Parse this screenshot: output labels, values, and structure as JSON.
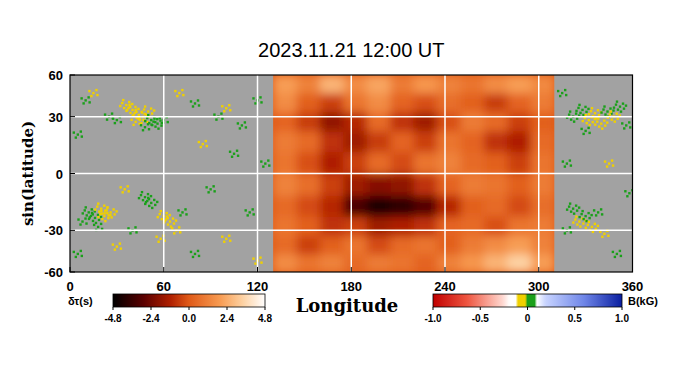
{
  "chart_data": {
    "type": "heatmap",
    "title": "2023.11.21 12:00 UT",
    "x_label": "Longitude",
    "y_label": "sin(latitude)",
    "xlim": [
      0,
      360
    ],
    "xticks": [
      0,
      60,
      120,
      180,
      240,
      300,
      360
    ],
    "ylim": [
      -60,
      60
    ],
    "yticks": [
      -60,
      -30,
      0,
      30,
      60
    ],
    "grid": true,
    "far_side": {
      "x": [
        130,
        145,
        160,
        175,
        190,
        205,
        220,
        235,
        250,
        265,
        280,
        295,
        310
      ],
      "y": [
        -60,
        -45,
        -33,
        -22,
        -11,
        0,
        11,
        22,
        33,
        45,
        60
      ],
      "values": [
        [
          1.5,
          0.8,
          1.2,
          0.5,
          1.0,
          0.8,
          0.3,
          1.2,
          1.8,
          2.6,
          3.4,
          2.0
        ],
        [
          0.5,
          -0.5,
          0.2,
          0.8,
          -0.3,
          0.5,
          0.8,
          0.2,
          1.0,
          1.5,
          2.0,
          1.2
        ],
        [
          0.8,
          0.2,
          -0.8,
          -0.5,
          -1.5,
          -1.2,
          -0.8,
          0.3,
          0.5,
          -0.2,
          0.8,
          1.0
        ],
        [
          0.5,
          -0.3,
          -1.0,
          -3.2,
          -4.2,
          -3.8,
          -3.0,
          -1.0,
          0.2,
          0.5,
          -0.3,
          0.6
        ],
        [
          1.2,
          0.6,
          -0.5,
          -1.5,
          -2.0,
          -1.8,
          -0.8,
          0.3,
          1.0,
          0.8,
          0.2,
          1.0
        ],
        [
          0.8,
          -0.2,
          -1.2,
          -0.5,
          0.5,
          -0.3,
          0.8,
          1.2,
          0.5,
          0.2,
          -0.5,
          0.8
        ],
        [
          1.0,
          0.5,
          -0.8,
          -1.5,
          -0.6,
          0.3,
          -0.5,
          0.8,
          0.3,
          -0.8,
          -1.2,
          0.5
        ],
        [
          0.3,
          -0.6,
          -1.8,
          -1.0,
          0.5,
          -0.8,
          -1.5,
          -0.2,
          1.0,
          0.5,
          -0.5,
          0.2
        ],
        [
          1.5,
          0.2,
          -0.5,
          0.8,
          1.5,
          0.3,
          -0.2,
          0.6,
          0.2,
          -0.6,
          0.3,
          1.0
        ],
        [
          2.0,
          1.2,
          2.6,
          1.5,
          2.2,
          1.0,
          1.8,
          1.2,
          0.8,
          1.5,
          2.0,
          1.4
        ]
      ]
    },
    "magnetogram": {
      "lon": [
        36,
        40,
        44,
        47,
        42,
        50,
        52,
        56,
        60,
        48,
        30,
        25,
        10,
        15,
        80,
        95,
        100,
        110,
        120,
        70,
        5,
        85,
        105,
        125,
        12,
        16,
        20,
        22,
        26,
        8,
        18,
        48,
        52,
        60,
        64,
        68,
        58,
        72,
        40,
        30,
        80,
        100,
        115,
        90,
        5,
        120,
        35,
        322,
        328,
        332,
        336,
        340,
        344,
        348,
        352,
        330,
        356,
        322,
        326,
        330,
        334,
        338,
        318,
        342,
        315,
        350,
        345,
        358,
        318
      ],
      "lat": [
        37,
        34,
        31,
        28,
        27,
        33,
        28,
        26,
        28,
        24,
        28,
        30,
        40,
        45,
        38,
        30,
        35,
        25,
        40,
        45,
        20,
        15,
        10,
        5,
        -20,
        -23,
        -18,
        -22,
        -20,
        -25,
        -28,
        -12,
        -15,
        -22,
        -25,
        -30,
        -35,
        -20,
        -30,
        -40,
        -45,
        -35,
        -20,
        -8,
        -45,
        -50,
        -8,
        30,
        34,
        28,
        32,
        26,
        33,
        30,
        36,
        22,
        25,
        -18,
        -25,
        -22,
        -28,
        -20,
        -30,
        -32,
        45,
        -45,
        5,
        -10,
        5
      ],
      "b": [
        -0.07,
        -0.09,
        -0.08,
        -0.06,
        -0.05,
        -0.07,
        0.07,
        0.08,
        0.06,
        0.05,
        0.06,
        0.05,
        0.05,
        -0.05,
        0.05,
        0.06,
        -0.05,
        0.05,
        0.05,
        -0.05,
        0.05,
        -0.05,
        0.05,
        0.05,
        0.08,
        0.09,
        -0.08,
        -0.1,
        -0.07,
        0.06,
        0.05,
        0.08,
        0.07,
        -0.07,
        -0.08,
        -0.06,
        -0.05,
        0.06,
        0.05,
        -0.05,
        0.05,
        -0.05,
        0.05,
        0.05,
        0.05,
        -0.05,
        -0.05,
        0.08,
        0.09,
        -0.09,
        -0.1,
        -0.08,
        0.08,
        -0.07,
        0.07,
        0.06,
        0.06,
        0.07,
        -0.08,
        0.08,
        -0.07,
        0.06,
        0.06,
        -0.05,
        0.05,
        0.05,
        -0.05,
        0.05,
        0.05
      ]
    },
    "colorbars": [
      {
        "label": "δτ(s)",
        "range": [
          -4.8,
          4.8
        ],
        "ticks": [
          -4.8,
          -2.4,
          {
            "value": 0,
            "label": "0.0"
          },
          2.4,
          4.8
        ]
      },
      {
        "label": "B(kG)",
        "range": [
          -1,
          1
        ],
        "ticks": [
          {
            "value": -1,
            "label": "-1.0"
          },
          -0.5,
          0,
          0.5,
          {
            "value": 1,
            "label": "1.0"
          }
        ]
      }
    ]
  }
}
